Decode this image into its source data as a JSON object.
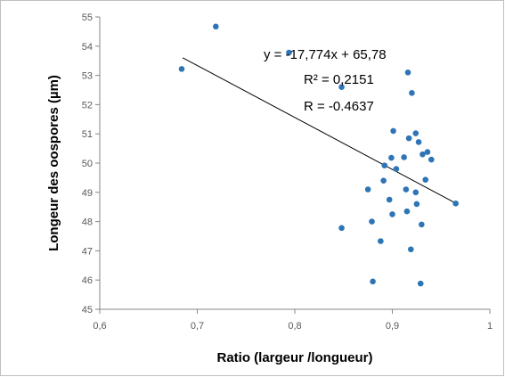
{
  "chart_data": {
    "type": "scatter",
    "xlabel": "Ratio (largeur /longueur)",
    "ylabel": "Longeur des oospores (µm)",
    "xlim": [
      0.6,
      1
    ],
    "ylim": [
      45,
      55
    ],
    "x_ticks": [
      0.6,
      0.7,
      0.8,
      0.9,
      1
    ],
    "x_tick_labels": [
      "0,6",
      "0,7",
      "0,8",
      "0,9",
      "1"
    ],
    "y_ticks": [
      45,
      46,
      47,
      48,
      49,
      50,
      51,
      52,
      53,
      54,
      55
    ],
    "y_tick_labels": [
      "45",
      "46",
      "47",
      "48",
      "49",
      "50",
      "51",
      "52",
      "53",
      "54",
      "55"
    ],
    "grid": false,
    "marker_color": "#2e75b6",
    "trendline_color": "#000000",
    "trendline": {
      "slope": -17.774,
      "intercept": 65.78,
      "x_range": [
        0.685,
        0.965
      ]
    },
    "annotations": [
      "y = -17,774x + 65,78",
      "R² = 0,2151",
      "R = -0.4637"
    ],
    "points": [
      {
        "x": 0.684,
        "y": 53.22
      },
      {
        "x": 0.719,
        "y": 54.67
      },
      {
        "x": 0.794,
        "y": 53.78
      },
      {
        "x": 0.848,
        "y": 52.6
      },
      {
        "x": 0.848,
        "y": 47.78
      },
      {
        "x": 0.875,
        "y": 49.1
      },
      {
        "x": 0.879,
        "y": 48.0
      },
      {
        "x": 0.88,
        "y": 45.95
      },
      {
        "x": 0.888,
        "y": 47.33
      },
      {
        "x": 0.891,
        "y": 49.4
      },
      {
        "x": 0.892,
        "y": 49.92
      },
      {
        "x": 0.897,
        "y": 48.75
      },
      {
        "x": 0.899,
        "y": 50.18
      },
      {
        "x": 0.9,
        "y": 48.25
      },
      {
        "x": 0.901,
        "y": 51.1
      },
      {
        "x": 0.904,
        "y": 49.8
      },
      {
        "x": 0.912,
        "y": 50.2
      },
      {
        "x": 0.914,
        "y": 49.1
      },
      {
        "x": 0.915,
        "y": 48.35
      },
      {
        "x": 0.916,
        "y": 53.1
      },
      {
        "x": 0.917,
        "y": 50.85
      },
      {
        "x": 0.919,
        "y": 47.05
      },
      {
        "x": 0.92,
        "y": 52.4
      },
      {
        "x": 0.924,
        "y": 51.02
      },
      {
        "x": 0.924,
        "y": 49.0
      },
      {
        "x": 0.925,
        "y": 48.6
      },
      {
        "x": 0.927,
        "y": 50.72
      },
      {
        "x": 0.929,
        "y": 45.88
      },
      {
        "x": 0.93,
        "y": 47.9
      },
      {
        "x": 0.931,
        "y": 50.3
      },
      {
        "x": 0.934,
        "y": 49.43
      },
      {
        "x": 0.936,
        "y": 50.38
      },
      {
        "x": 0.94,
        "y": 50.12
      },
      {
        "x": 0.965,
        "y": 48.62
      }
    ]
  }
}
